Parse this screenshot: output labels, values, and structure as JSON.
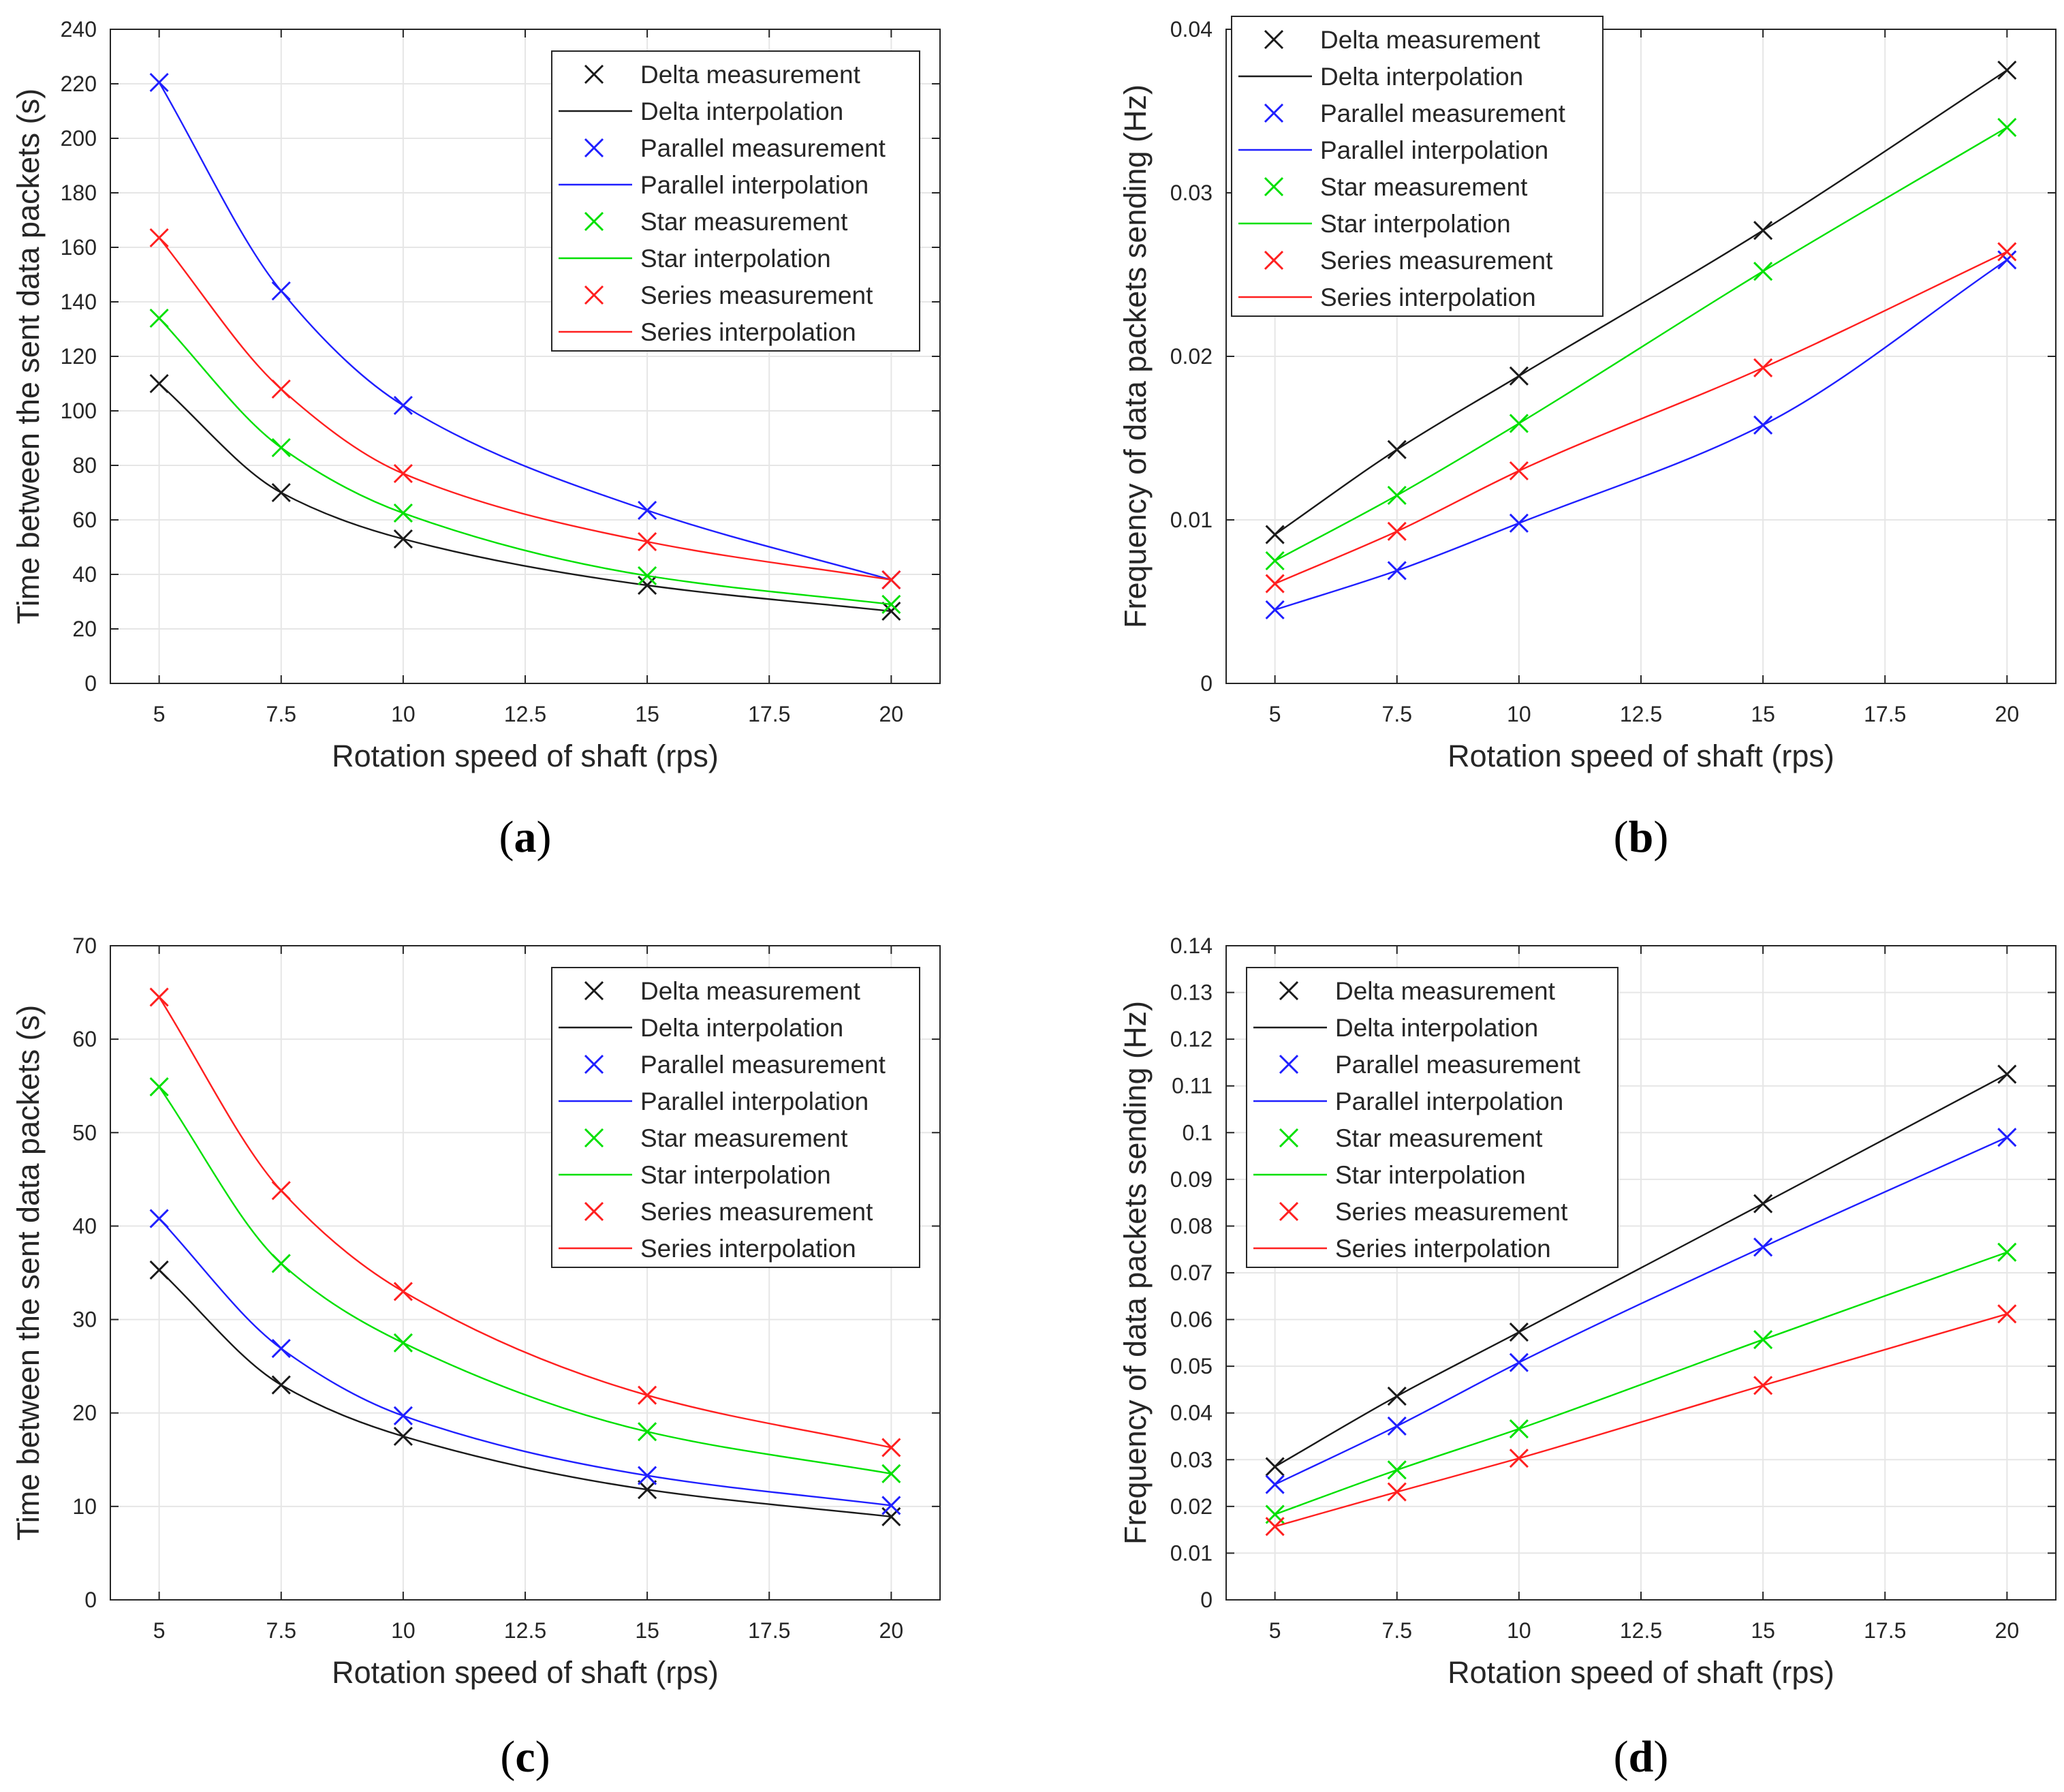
{
  "figure": {
    "colors": {
      "Delta": "#1a1a1a",
      "Parallel": "#1f1fff",
      "Star": "#00e000",
      "Series": "#ff1f1f",
      "grid": "#e6e6e6",
      "axis": "#262626"
    }
  },
  "chart_data": [
    {
      "id": "a",
      "caption_open": "(",
      "caption_letter": "a",
      "caption_close": ")",
      "type": "line",
      "xlabel": "Rotation speed of shaft (rps)",
      "ylabel": "Time between the sent data packets (s)",
      "xlim": [
        4,
        21
      ],
      "ylim": [
        0,
        240
      ],
      "xticks": [
        5,
        7.5,
        10,
        12.5,
        15,
        17.5,
        20
      ],
      "xtick_labels": [
        "5",
        "7.5",
        "10",
        "12.5",
        "15",
        "17.5",
        "20"
      ],
      "yticks": [
        0,
        20,
        40,
        60,
        80,
        100,
        120,
        140,
        160,
        180,
        200,
        220,
        240
      ],
      "ytick_labels": [
        "0",
        "20",
        "40",
        "60",
        "80",
        "100",
        "120",
        "140",
        "160",
        "180",
        "200",
        "220",
        "240"
      ],
      "grid": true,
      "legend_position": "top-right",
      "x": [
        5,
        7.5,
        10,
        15,
        20
      ],
      "series": [
        {
          "name": "Delta",
          "values": [
            110,
            70,
            53,
            36,
            26.5
          ]
        },
        {
          "name": "Parallel",
          "values": [
            220.5,
            144,
            102,
            63.5,
            38
          ]
        },
        {
          "name": "Star",
          "values": [
            134,
            86.5,
            62.5,
            39.5,
            29
          ]
        },
        {
          "name": "Series",
          "values": [
            163.5,
            108,
            77,
            52,
            38
          ]
        }
      ],
      "legend": [
        "Delta measurement",
        "Delta interpolation",
        "Parallel measurement",
        "Parallel interpolation",
        "Star measurement",
        "Star interpolation",
        "Series measurement",
        "Series interpolation"
      ]
    },
    {
      "id": "b",
      "caption_open": "(",
      "caption_letter": "b",
      "caption_close": ")",
      "type": "line",
      "xlabel": "Rotation speed of shaft (rps)",
      "ylabel": "Frequency of data packets sending (Hz)",
      "xlim": [
        4,
        21
      ],
      "ylim": [
        0,
        0.04
      ],
      "xticks": [
        5,
        7.5,
        10,
        12.5,
        15,
        17.5,
        20
      ],
      "xtick_labels": [
        "5",
        "7.5",
        "10",
        "12.5",
        "15",
        "17.5",
        "20"
      ],
      "yticks": [
        0,
        0.01,
        0.02,
        0.03,
        0.04
      ],
      "ytick_labels": [
        "0",
        "0.01",
        "0.02",
        "0.03",
        "0.04"
      ],
      "grid": true,
      "legend_position": "top-left",
      "x": [
        5,
        7.5,
        10,
        15,
        20
      ],
      "series": [
        {
          "name": "Delta",
          "values": [
            0.0091,
            0.0143,
            0.0188,
            0.0277,
            0.0375
          ]
        },
        {
          "name": "Parallel",
          "values": [
            0.0045,
            0.0069,
            0.0098,
            0.0158,
            0.0259
          ]
        },
        {
          "name": "Star",
          "values": [
            0.0075,
            0.0115,
            0.0159,
            0.0252,
            0.034
          ]
        },
        {
          "name": "Series",
          "values": [
            0.0061,
            0.0093,
            0.013,
            0.0193,
            0.0264
          ]
        }
      ],
      "legend": [
        "Delta measurement",
        "Delta interpolation",
        "Parallel measurement",
        "Parallel interpolation",
        "Star measurement",
        "Star interpolation",
        "Series measurement",
        "Series interpolation"
      ]
    },
    {
      "id": "c",
      "caption_open": "(",
      "caption_letter": "c",
      "caption_close": ")",
      "type": "line",
      "xlabel": "Rotation speed of shaft (rps)",
      "ylabel": "Time between the sent data packets (s)",
      "xlim": [
        4,
        21
      ],
      "ylim": [
        0,
        70
      ],
      "xticks": [
        5,
        7.5,
        10,
        12.5,
        15,
        17.5,
        20
      ],
      "xtick_labels": [
        "5",
        "7.5",
        "10",
        "12.5",
        "15",
        "17.5",
        "20"
      ],
      "yticks": [
        0,
        10,
        20,
        30,
        40,
        50,
        60,
        70
      ],
      "ytick_labels": [
        "0",
        "10",
        "20",
        "30",
        "40",
        "50",
        "60",
        "70"
      ],
      "grid": true,
      "legend_position": "top-right",
      "x": [
        5,
        7.5,
        10,
        15,
        20
      ],
      "series": [
        {
          "name": "Delta",
          "values": [
            35.3,
            23,
            17.5,
            11.8,
            8.9
          ]
        },
        {
          "name": "Parallel",
          "values": [
            40.8,
            26.9,
            19.7,
            13.3,
            10.1
          ]
        },
        {
          "name": "Star",
          "values": [
            54.9,
            36,
            27.5,
            18,
            13.5
          ]
        },
        {
          "name": "Series",
          "values": [
            64.5,
            43.8,
            33,
            21.9,
            16.3
          ]
        }
      ],
      "legend": [
        "Delta measurement",
        "Delta interpolation",
        "Parallel measurement",
        "Parallel interpolation",
        "Star measurement",
        "Star interpolation",
        "Series measurement",
        "Series interpolation"
      ]
    },
    {
      "id": "d",
      "caption_open": "(",
      "caption_letter": "d",
      "caption_close": ")",
      "type": "line",
      "xlabel": "Rotation speed of shaft (rps)",
      "ylabel": "Frequency of data packets sending (Hz)",
      "xlim": [
        4,
        21
      ],
      "ylim": [
        0,
        0.14
      ],
      "xticks": [
        5,
        7.5,
        10,
        12.5,
        15,
        17.5,
        20
      ],
      "xtick_labels": [
        "5",
        "7.5",
        "10",
        "12.5",
        "15",
        "17.5",
        "20"
      ],
      "yticks": [
        0,
        0.01,
        0.02,
        0.03,
        0.04,
        0.05,
        0.06,
        0.07,
        0.08,
        0.09,
        0.1,
        0.11,
        0.12,
        0.13,
        0.14
      ],
      "ytick_labels": [
        "0",
        "0.01",
        "0.02",
        "0.03",
        "0.04",
        "0.05",
        "0.06",
        "0.07",
        "0.08",
        "0.09",
        "0.1",
        "0.11",
        "0.12",
        "0.13",
        "0.14"
      ],
      "grid": true,
      "legend_position": "top-left",
      "x": [
        5,
        7.5,
        10,
        15,
        20
      ],
      "series": [
        {
          "name": "Delta",
          "values": [
            0.0285,
            0.0436,
            0.0573,
            0.0848,
            0.1125
          ]
        },
        {
          "name": "Parallel",
          "values": [
            0.0247,
            0.0372,
            0.0508,
            0.0755,
            0.099
          ]
        },
        {
          "name": "Star",
          "values": [
            0.0183,
            0.0278,
            0.0366,
            0.0557,
            0.0744
          ]
        },
        {
          "name": "Series",
          "values": [
            0.0157,
            0.0231,
            0.0303,
            0.0459,
            0.0612
          ]
        }
      ],
      "legend": [
        "Delta measurement",
        "Delta interpolation",
        "Parallel measurement",
        "Parallel interpolation",
        "Star measurement",
        "Star interpolation",
        "Series measurement",
        "Series interpolation"
      ]
    }
  ]
}
